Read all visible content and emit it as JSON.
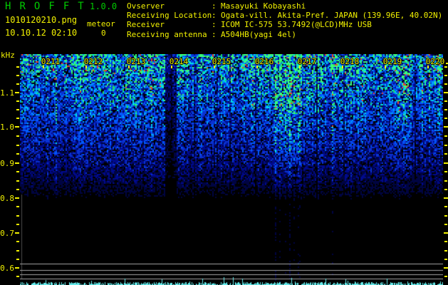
{
  "header": {
    "app_title": "H R O F F T",
    "version": "1.0.0",
    "filename": "1010120210.png",
    "timestamp": "10.10.12 02:10",
    "counter_label": "meteor",
    "counter_value": "0",
    "separator": ": ",
    "info_rows": [
      {
        "label": "Ovserver",
        "value": "Masayuki Kobayashi"
      },
      {
        "label": "Receiving Location",
        "value": "Ogata-vill. Akita-Pref. JAPAN (139.96E, 40.02N)"
      },
      {
        "label": "Receiver",
        "value": "ICOM IC-575 53.7492(@LCD)MHz USB"
      },
      {
        "label": "Receiving antenna",
        "value": "A504HB(yagi 4el)"
      }
    ]
  },
  "spectrogram": {
    "y_axis_unit": "kHz",
    "y_tick_labels": [
      "1.1",
      "1.0",
      "0.9",
      "0.8",
      "0.7",
      "0.6"
    ],
    "x_tick_labels": [
      "0211",
      "0212",
      "0213",
      "0214",
      "0215",
      "0216",
      "0217",
      "0218",
      "0219",
      "0220"
    ],
    "colors": {
      "text_yellow": "#f2f200",
      "text_green": "#00cc00",
      "noise_dark_blue": "#000840",
      "noise_blue": "#0a32d2",
      "noise_bright_blue": "#005aff",
      "noise_cyan": "#00e1e1",
      "noise_green": "#1ed764",
      "noise_red": "#e64628",
      "marker_gray": "#bebebe",
      "baseline_cyan": "#64ebeb",
      "background": "#000000"
    }
  }
}
